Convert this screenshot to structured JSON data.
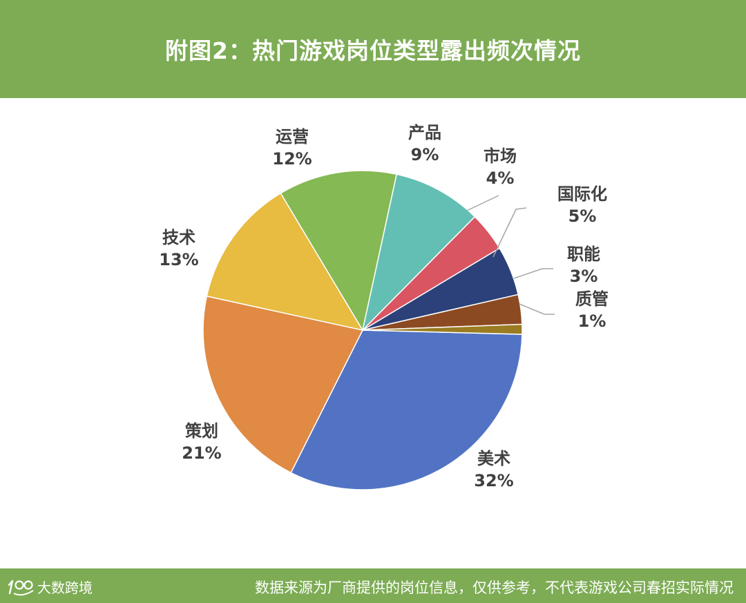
{
  "title": "附图2：热门游戏岗位类型露出频次情况",
  "footer": {
    "logo_text": "大数跨境",
    "source": "数据来源为厂商提供的岗位信息，仅供参考，不代表游戏公司春招实际情况"
  },
  "chart_data": {
    "type": "pie",
    "title": "附图2：热门游戏岗位类型露出频次情况",
    "slices": [
      {
        "label": "美术",
        "value": 32,
        "pct_label": "32%",
        "color": "#5273c4"
      },
      {
        "label": "策划",
        "value": 21,
        "pct_label": "21%",
        "color": "#e08a43"
      },
      {
        "label": "技术",
        "value": 13,
        "pct_label": "13%",
        "color": "#e8bb41"
      },
      {
        "label": "运营",
        "value": 12,
        "pct_label": "12%",
        "color": "#85b953"
      },
      {
        "label": "产品",
        "value": 9,
        "pct_label": "9%",
        "color": "#63bfb3"
      },
      {
        "label": "市场",
        "value": 4,
        "pct_label": "4%",
        "color": "#d95562"
      },
      {
        "label": "国际化",
        "value": 5,
        "pct_label": "5%",
        "color": "#2c417a"
      },
      {
        "label": "职能",
        "value": 3,
        "pct_label": "3%",
        "color": "#8c4a22"
      },
      {
        "label": "质管",
        "value": 1,
        "pct_label": "1%",
        "color": "#9a7c23"
      }
    ]
  }
}
